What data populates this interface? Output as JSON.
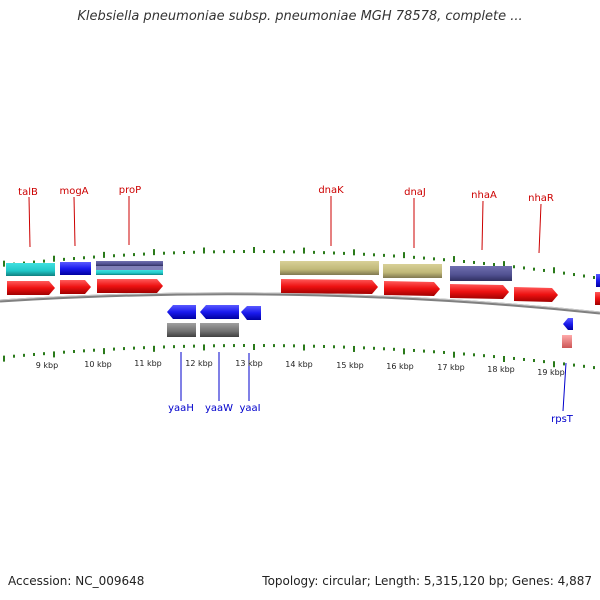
{
  "title": "Klebsiella pneumoniae subsp. pneumoniae MGH 78578, complete ...",
  "footer": {
    "accession_label": "Accession:",
    "accession": "NC_009648",
    "topology_label": "Topology:",
    "topology": "circular",
    "length_label": "Length:",
    "length": "5,315,120 bp",
    "genes_label": "Genes:",
    "genes": "4,887"
  },
  "scale_labels": [
    "9 kbp",
    "10 kbp",
    "11 kbp",
    "12 kbp",
    "13 kbp",
    "14 kbp",
    "15 kbp",
    "16 kbp",
    "17 kbp",
    "18 kbp",
    "19 kbp"
  ],
  "upper_genes": [
    "talB",
    "mogA",
    "proP",
    "dnaK",
    "dnaJ",
    "nhaA",
    "nhaR"
  ],
  "lower_genes": [
    "yaaH",
    "yaaW",
    "yaaI",
    "rpsT"
  ],
  "colors": {
    "forward_cds": "#ee1111",
    "reverse_cds": "#1a1aee",
    "upper_label": "#cc0000",
    "lower_label": "#0000cc",
    "tick": "#2a7a1a",
    "backbone": "#707070",
    "cyan_feature": "#20c8c8",
    "olive_feature": "#c0b878",
    "slate_feature": "#505090",
    "grey_feature": "#707070",
    "rrna_feature": "#ee8888"
  }
}
